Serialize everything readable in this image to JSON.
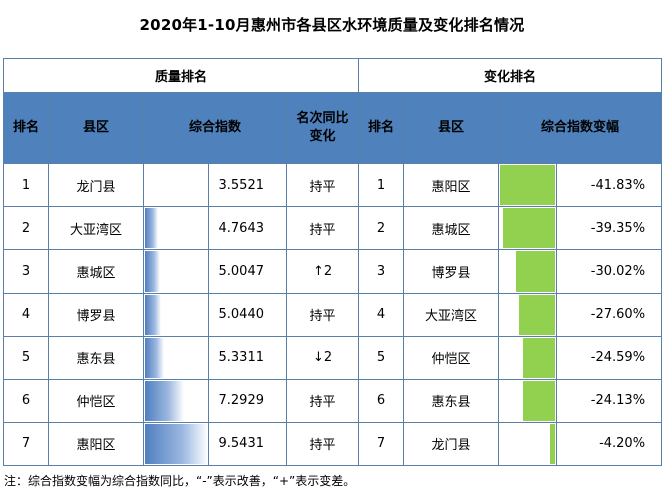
{
  "title": "2020年1-10月惠州市各县区水环境质量及变化排名情况",
  "groups": {
    "quality": "质量排名",
    "change": "变化排名"
  },
  "headers": {
    "rank": "排名",
    "county": "县区",
    "index": "综合指数",
    "trend_line1": "名次同比",
    "trend_line2": "变化",
    "rank2": "排名",
    "county2": "县区",
    "change_pct": "综合指数变幅"
  },
  "quality_rows": [
    {
      "rank": "1",
      "county": "龙门县",
      "index": "3.5521",
      "index_value": 3.5521,
      "trend": "持平"
    },
    {
      "rank": "2",
      "county": "大亚湾区",
      "index": "4.7643",
      "index_value": 4.7643,
      "trend": "持平"
    },
    {
      "rank": "3",
      "county": "惠城区",
      "index": "5.0047",
      "index_value": 5.0047,
      "trend": "↑2"
    },
    {
      "rank": "4",
      "county": "博罗县",
      "index": "5.0440",
      "index_value": 5.044,
      "trend": "持平"
    },
    {
      "rank": "5",
      "county": "惠东县",
      "index": "5.3311",
      "index_value": 5.3311,
      "trend": "↓2"
    },
    {
      "rank": "6",
      "county": "仲恺区",
      "index": "7.2929",
      "index_value": 7.2929,
      "trend": "持平"
    },
    {
      "rank": "7",
      "county": "惠阳区",
      "index": "9.5431",
      "index_value": 9.5431,
      "trend": "持平"
    }
  ],
  "change_rows": [
    {
      "rank": "1",
      "county": "惠阳区",
      "pct": "-41.83%",
      "pct_value": -41.83
    },
    {
      "rank": "2",
      "county": "惠城区",
      "pct": "-39.35%",
      "pct_value": -39.35
    },
    {
      "rank": "3",
      "county": "博罗县",
      "pct": "-30.02%",
      "pct_value": -30.02
    },
    {
      "rank": "4",
      "county": "大亚湾区",
      "pct": "-27.60%",
      "pct_value": -27.6
    },
    {
      "rank": "5",
      "county": "仲恺区",
      "pct": "-24.59%",
      "pct_value": -24.59
    },
    {
      "rank": "6",
      "county": "惠东县",
      "pct": "-24.13%",
      "pct_value": -24.13
    },
    {
      "rank": "7",
      "county": "龙门县",
      "pct": "-4.20%",
      "pct_value": -4.2
    }
  ],
  "note": "注：综合指数变幅为综合指数同比，“-”表示改善，“+”表示变差。",
  "colors": {
    "header_bg": "#4f81bd",
    "quality_bar": "#4f7fc0",
    "change_bar": "#92d050"
  }
}
